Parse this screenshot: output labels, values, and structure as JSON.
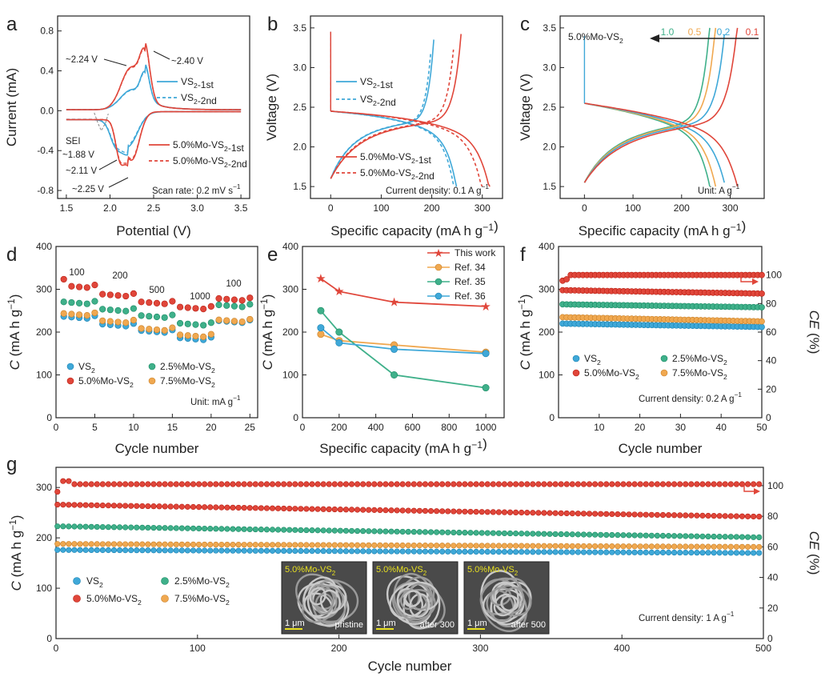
{
  "colors": {
    "VS2": "#3fa8d8",
    "Mo25": "#3fb08a",
    "Mo50": "#e0463a",
    "Mo75": "#f0a850",
    "ref34": "#f0a850",
    "ref35": "#3fb08a",
    "ref36": "#3fa8d8",
    "this_work": "#e0463a",
    "scalebar": "#e8e020"
  },
  "chart_data": [
    {
      "panel": "a",
      "type": "line",
      "xlabel": "Potential (V)",
      "ylabel": "Current (mA)",
      "xlim": [
        1.4,
        3.6
      ],
      "ylim": [
        -0.88,
        0.95
      ],
      "xticks": [
        "1.5",
        "2.0",
        "2.5",
        "3.0",
        "3.5"
      ],
      "yticks": [
        "-0.8",
        "-0.4",
        "0.0",
        "0.4",
        "0.8"
      ],
      "legend": [
        "VS2-1st",
        "VS2-2nd",
        "5.0%Mo-VS2-1st",
        "5.0%Mo-VS2-2nd"
      ],
      "legend_display": [
        "VS",
        "2",
        "-1st",
        "VS",
        "2",
        "-2nd",
        "5.0%Mo-VS",
        "2",
        "-1st",
        "5.0%Mo-VS",
        "2",
        "-2nd"
      ],
      "annotations": [
        "~2.24 V",
        "~2.40 V",
        "SEI",
        "~1.88 V",
        "~2.11 V",
        "~2.25 V",
        "Scan rate: 0.2 mV s",
        "−1"
      ],
      "peaks": {
        "oxidation": [
          2.24,
          2.4
        ],
        "reduction": [
          1.88,
          2.11,
          2.25
        ]
      }
    },
    {
      "panel": "b",
      "type": "line",
      "xlabel": "Specific capacity (mA h g−1)",
      "xlabel_parts": [
        "Specific capacity (mA h g",
        "−1",
        ")"
      ],
      "ylabel": "Voltage (V)",
      "xlim": [
        -40,
        340
      ],
      "ylim": [
        1.35,
        3.65
      ],
      "xticks": [
        "0",
        "100",
        "200",
        "300"
      ],
      "yticks": [
        "1.5",
        "2.0",
        "2.5",
        "3.0",
        "3.5"
      ],
      "legend": [
        "VS2-1st",
        "VS2-2nd",
        "5.0%Mo-VS2-1st",
        "5.0%Mo-VS2-2nd"
      ],
      "annotation": "Current density: 0.1 A g",
      "annotation_sup": "−1",
      "capacities": {
        "VS2-1st": 250,
        "VS2-2nd": 245,
        "5.0%Mo-VS2-1st": 315,
        "5.0%Mo-VS2-2nd": 300
      }
    },
    {
      "panel": "c",
      "type": "line",
      "xlabel": "Specific capacity (mA h g−1)",
      "ylabel": "Voltage (V)",
      "xlim": [
        -50,
        370
      ],
      "ylim": [
        1.35,
        3.65
      ],
      "xticks": [
        "0",
        "100",
        "200",
        "300"
      ],
      "yticks": [
        "1.5",
        "2.0",
        "2.5",
        "3.0",
        "3.5"
      ],
      "label": "5.0%Mo-VS",
      "label_sub": "2",
      "rate_labels": [
        "1.0",
        "0.5",
        "0.2",
        "0.1"
      ],
      "rate_capacities": [
        258,
        270,
        290,
        315
      ],
      "unit": "Unit: A g",
      "unit_sup": "−1"
    },
    {
      "panel": "d",
      "type": "scatter",
      "xlabel": "Cycle number",
      "ylabel": "C (mA h g−1)",
      "xlim": [
        0,
        26
      ],
      "ylim": [
        0,
        400
      ],
      "xticks": [
        "0",
        "5",
        "10",
        "15",
        "20",
        "25"
      ],
      "yticks": [
        "0",
        "100",
        "200",
        "300",
        "400"
      ],
      "rate_labels": [
        "100",
        "200",
        "500",
        "1000",
        "100"
      ],
      "unit": "Unit: mA g",
      "unit_sup": "−1",
      "legend": [
        "VS2",
        "2.5%Mo-VS2",
        "5.0%Mo-VS2",
        "7.5%Mo-VS2"
      ],
      "series": [
        {
          "name": "VS2",
          "steps": [
            238,
            220,
            205,
            188,
            228
          ]
        },
        {
          "name": "2.5%Mo-VS2",
          "steps": [
            272,
            255,
            240,
            222,
            265
          ]
        },
        {
          "name": "5.0%Mo-VS2",
          "steps": [
            310,
            290,
            272,
            260,
            280
          ]
        },
        {
          "name": "7.5%Mo-VS2",
          "steps": [
            245,
            228,
            210,
            195,
            230
          ]
        }
      ]
    },
    {
      "panel": "e",
      "type": "line",
      "xlabel": "Specific capacity (mA h g−1)",
      "ylabel": "C (mA h g−1)",
      "xlim": [
        0,
        1100
      ],
      "ylim": [
        0,
        400
      ],
      "xticks": [
        "0",
        "200",
        "400",
        "600",
        "800",
        "1000"
      ],
      "yticks": [
        "0",
        "100",
        "200",
        "300",
        "400"
      ],
      "legend": [
        "This work",
        "Ref. 34",
        "Ref. 35",
        "Ref. 36"
      ],
      "series": [
        {
          "name": "This work",
          "x": [
            100,
            200,
            500,
            1000
          ],
          "values": [
            325,
            295,
            270,
            260
          ]
        },
        {
          "name": "Ref. 34",
          "x": [
            100,
            200,
            500,
            1000
          ],
          "values": [
            195,
            180,
            170,
            153
          ]
        },
        {
          "name": "Ref. 35",
          "x": [
            100,
            200,
            500,
            1000
          ],
          "values": [
            250,
            200,
            100,
            70
          ]
        },
        {
          "name": "Ref. 36",
          "x": [
            100,
            200,
            500,
            1000
          ],
          "values": [
            210,
            175,
            160,
            150
          ]
        }
      ]
    },
    {
      "panel": "f",
      "type": "scatter",
      "xlabel": "Cycle number",
      "ylabel": "C (mA h g−1)",
      "y2label": "CE (%)",
      "xlim": [
        0,
        50
      ],
      "ylim": [
        0,
        400
      ],
      "y2lim": [
        0,
        120
      ],
      "xticks": [
        "10",
        "20",
        "30",
        "40",
        "50"
      ],
      "yticks": [
        "0",
        "100",
        "200",
        "300",
        "400"
      ],
      "y2ticks": [
        "0",
        "20",
        "40",
        "60",
        "80",
        "100"
      ],
      "legend": [
        "VS2",
        "2.5%Mo-VS2",
        "5.0%Mo-VS2",
        "7.5%Mo-VS2"
      ],
      "annotation": "Current density: 0.2 A g",
      "annotation_sup": "−1",
      "series": [
        {
          "name": "VS2",
          "start": 220,
          "end": 212
        },
        {
          "name": "2.5%Mo-VS2",
          "start": 265,
          "end": 258
        },
        {
          "name": "5.0%Mo-VS2",
          "start": 298,
          "end": 290
        },
        {
          "name": "7.5%Mo-VS2",
          "start": 235,
          "end": 225
        }
      ],
      "ce": 100
    },
    {
      "panel": "g",
      "type": "scatter",
      "xlabel": "Cycle number",
      "ylabel": "C (mA h g−1)",
      "y2label": "CE (%)",
      "xlim": [
        0,
        500
      ],
      "ylim": [
        0,
        340
      ],
      "y2lim": [
        0,
        112
      ],
      "xticks": [
        "0",
        "100",
        "200",
        "300",
        "400",
        "500"
      ],
      "yticks": [
        "0",
        "100",
        "200",
        "300"
      ],
      "y2ticks": [
        "0",
        "20",
        "40",
        "60",
        "80",
        "100"
      ],
      "legend": [
        "VS2",
        "2.5%Mo-VS2",
        "5.0%Mo-VS2",
        "7.5%Mo-VS2"
      ],
      "annotation": "Current density: 1 A g",
      "annotation_sup": "−1",
      "series": [
        {
          "name": "VS2",
          "start": 176,
          "end": 170
        },
        {
          "name": "2.5%Mo-VS2",
          "start": 223,
          "end": 201
        },
        {
          "name": "5.0%Mo-VS2",
          "start": 266,
          "end": 242
        },
        {
          "name": "7.5%Mo-VS2",
          "start": 188,
          "end": 182
        }
      ],
      "ce": 101,
      "insets": [
        {
          "title": "5.0%Mo-VS",
          "sub": "2",
          "scale": "1 μm",
          "state": "pristine"
        },
        {
          "title": "5.0%Mo-VS",
          "sub": "2",
          "scale": "1 μm",
          "state": "after 300"
        },
        {
          "title": "5.0%Mo-VS",
          "sub": "2",
          "scale": "1 μm",
          "state": "after 500"
        }
      ]
    }
  ]
}
